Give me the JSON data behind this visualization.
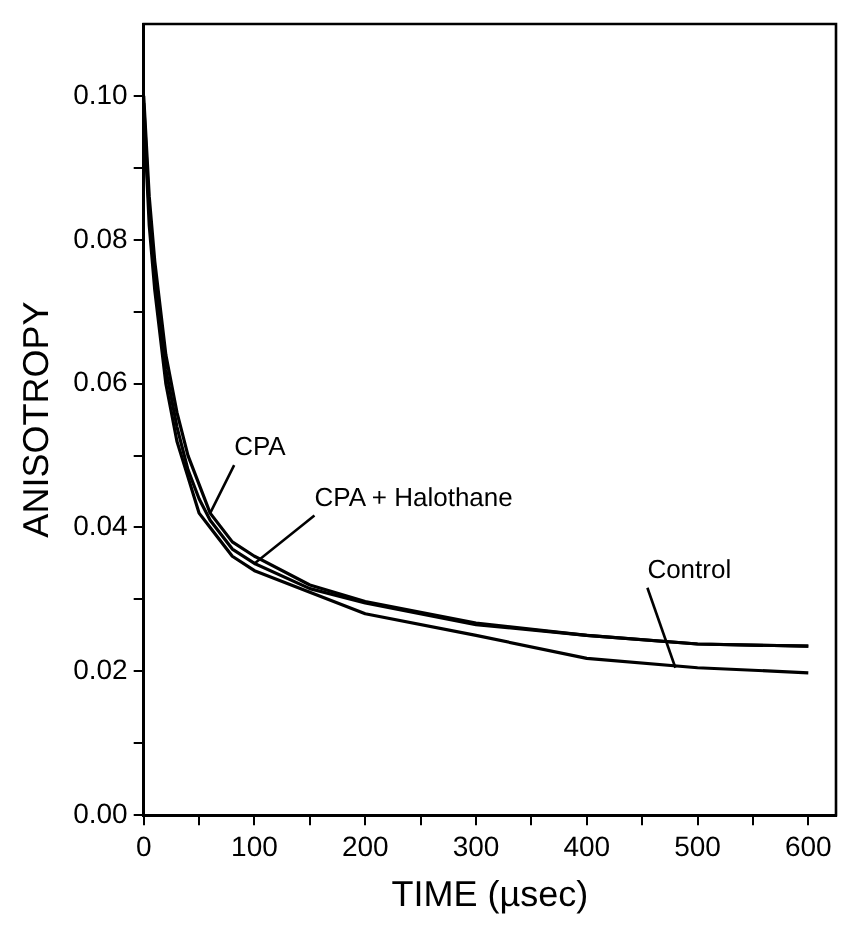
{
  "chart_data": {
    "type": "line",
    "xlabel": "TIME (µsec)",
    "ylabel": "ANISOTROPY",
    "xlim": [
      0,
      625
    ],
    "ylim": [
      0,
      0.11
    ],
    "xticks": [
      0,
      100,
      200,
      300,
      400,
      500,
      600,
      {
        "value": 50,
        "label": null
      },
      {
        "value": 150,
        "label": null
      },
      {
        "value": 250,
        "label": null
      },
      {
        "value": 350,
        "label": null
      },
      {
        "value": 450,
        "label": null
      },
      {
        "value": 550,
        "label": null
      }
    ],
    "yticks": [
      {
        "value": 0,
        "label": "0.00"
      },
      {
        "value": 0.02,
        "label": "0.02"
      },
      {
        "value": 0.04,
        "label": "0.04"
      },
      {
        "value": 0.06,
        "label": "0.06"
      },
      {
        "value": 0.08,
        "label": "0.08"
      },
      {
        "value": 0.1,
        "label": "0.10"
      },
      {
        "value": 0.01,
        "label": null
      },
      {
        "value": 0.03,
        "label": null
      },
      {
        "value": 0.05,
        "label": null
      },
      {
        "value": 0.07,
        "label": null
      },
      {
        "value": 0.09,
        "label": null
      }
    ],
    "x": [
      0,
      5,
      10,
      20,
      30,
      40,
      50,
      60,
      80,
      100,
      150,
      200,
      300,
      400,
      500,
      600
    ],
    "series": [
      {
        "color": "#000000",
        "values": [
          0.1,
          0.086,
          0.077,
          0.064,
          0.056,
          0.05,
          0.046,
          0.042,
          0.038,
          0.036,
          0.032,
          0.0297,
          0.0267,
          0.025,
          0.0238,
          0.0235
        ]
      },
      {
        "color": "#000000",
        "values": [
          0.099,
          0.084,
          0.075,
          0.062,
          0.054,
          0.048,
          0.044,
          0.041,
          0.037,
          0.035,
          0.0315,
          0.0295,
          0.0265,
          0.025,
          0.0238,
          0.0235
        ]
      },
      {
        "color": "#000000",
        "values": [
          0.098,
          0.082,
          0.073,
          0.06,
          0.052,
          0.047,
          0.042,
          0.04,
          0.036,
          0.034,
          0.031,
          0.028,
          0.025,
          0.0218,
          0.0205,
          0.0198
        ]
      }
    ],
    "annotations": [
      {
        "text": "CPA",
        "x": 60,
        "y": 0.042
      },
      {
        "text": "CPA + Halothane",
        "x": 100,
        "y": 0.035
      },
      {
        "text": "Control",
        "x": 480,
        "y": 0.0205
      }
    ],
    "grid": false,
    "legend": false,
    "marker": "none",
    "line_style": "solid"
  }
}
